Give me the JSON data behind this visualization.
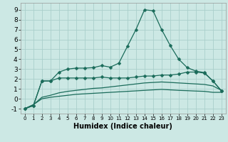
{
  "xlabel": "Humidex (Indice chaleur)",
  "x": [
    0,
    1,
    2,
    3,
    4,
    5,
    6,
    7,
    8,
    9,
    10,
    11,
    12,
    13,
    14,
    15,
    16,
    17,
    18,
    19,
    20,
    21,
    22,
    23
  ],
  "line1": [
    -1.0,
    -0.7,
    1.8,
    1.8,
    2.7,
    3.0,
    3.1,
    3.1,
    3.15,
    3.35,
    3.2,
    3.6,
    5.3,
    7.0,
    9.0,
    8.9,
    7.0,
    5.4,
    4.0,
    3.15,
    2.8,
    2.65,
    1.8,
    0.8
  ],
  "line2": [
    -1.0,
    -0.7,
    1.8,
    1.8,
    2.1,
    2.1,
    2.1,
    2.1,
    2.1,
    2.2,
    2.1,
    2.1,
    2.1,
    2.2,
    2.3,
    2.3,
    2.4,
    2.4,
    2.5,
    2.7,
    2.7,
    2.6,
    1.8,
    0.8
  ],
  "line3": [
    -1.0,
    -0.6,
    0.15,
    0.35,
    0.6,
    0.75,
    0.85,
    0.95,
    1.05,
    1.1,
    1.2,
    1.3,
    1.4,
    1.5,
    1.6,
    1.65,
    1.7,
    1.65,
    1.6,
    1.55,
    1.5,
    1.45,
    1.3,
    0.85
  ],
  "line4": [
    -1.0,
    -0.6,
    0.0,
    0.15,
    0.25,
    0.35,
    0.45,
    0.5,
    0.55,
    0.6,
    0.65,
    0.7,
    0.75,
    0.8,
    0.85,
    0.9,
    0.95,
    0.9,
    0.85,
    0.82,
    0.78,
    0.75,
    0.65,
    0.65
  ],
  "color": "#1a6b5a",
  "bg_color": "#cce8e4",
  "grid_color": "#aacfcb",
  "xlim": [
    -0.5,
    23.5
  ],
  "ylim": [
    -1.5,
    9.7
  ],
  "yticks": [
    -1,
    0,
    1,
    2,
    3,
    4,
    5,
    6,
    7,
    8,
    9
  ],
  "xticks": [
    0,
    1,
    2,
    3,
    4,
    5,
    6,
    7,
    8,
    9,
    10,
    11,
    12,
    13,
    14,
    15,
    16,
    17,
    18,
    19,
    20,
    21,
    22,
    23
  ],
  "markersize": 2.5,
  "linewidth": 0.9
}
